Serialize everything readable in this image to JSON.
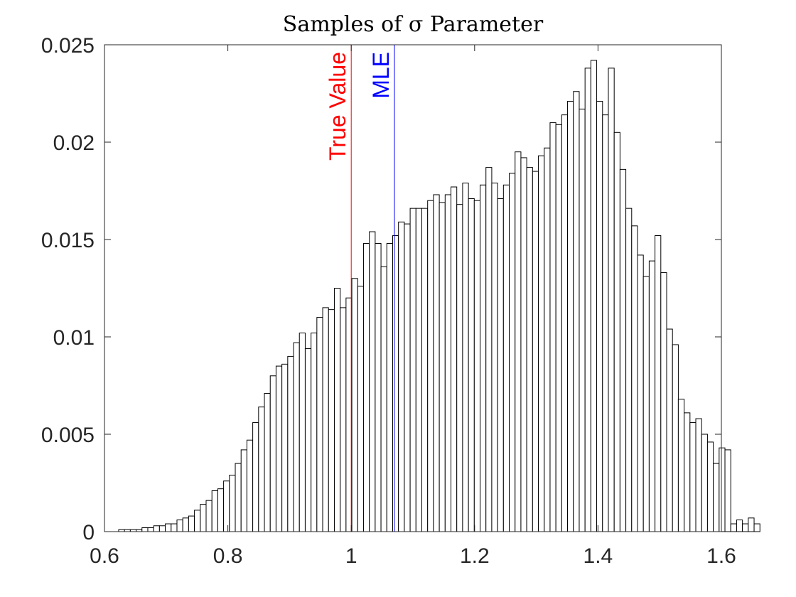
{
  "chart_data": {
    "type": "bar",
    "title": "Samples of σ Parameter",
    "xlabel": "",
    "ylabel": "",
    "xlim": [
      0.6,
      1.6
    ],
    "ylim": [
      0,
      0.025
    ],
    "xticks": [
      "0.6",
      "0.8",
      "1",
      "1.2",
      "1.4",
      "1.6"
    ],
    "yticks": [
      "0",
      "0.005",
      "0.01",
      "0.015",
      "0.02",
      "0.025"
    ],
    "grid": false,
    "bins": {
      "start": 0.623,
      "width": 0.00945,
      "values": [
        0.0001,
        0.0001,
        0.0001,
        0.0001,
        0.0002,
        0.0002,
        0.0003,
        0.0003,
        0.0004,
        0.0004,
        0.0006,
        0.0007,
        0.0008,
        0.0011,
        0.0014,
        0.0016,
        0.0021,
        0.0022,
        0.0026,
        0.0029,
        0.0035,
        0.0042,
        0.0047,
        0.0056,
        0.0064,
        0.0071,
        0.008,
        0.0085,
        0.0086,
        0.009,
        0.0097,
        0.0102,
        0.0094,
        0.0102,
        0.011,
        0.0115,
        0.0114,
        0.0125,
        0.0115,
        0.012,
        0.013,
        0.0126,
        0.0148,
        0.0154,
        0.0148,
        0.0136,
        0.0148,
        0.0152,
        0.0159,
        0.0158,
        0.0166,
        0.0166,
        0.0166,
        0.017,
        0.0173,
        0.0169,
        0.0173,
        0.0177,
        0.0168,
        0.0179,
        0.0171,
        0.017,
        0.0178,
        0.0187,
        0.0179,
        0.0171,
        0.0178,
        0.0184,
        0.0195,
        0.0192,
        0.0187,
        0.0185,
        0.0193,
        0.0197,
        0.021,
        0.0209,
        0.0214,
        0.0221,
        0.0226,
        0.0217,
        0.0238,
        0.0242,
        0.0221,
        0.0214,
        0.0238,
        0.0205,
        0.0186,
        0.0166,
        0.0157,
        0.0142,
        0.0131,
        0.0139,
        0.0152,
        0.0133,
        0.0104,
        0.0096,
        0.0068,
        0.0061,
        0.0056,
        0.0058,
        0.005,
        0.0046,
        0.0035,
        0.0043,
        0.0042,
        0.0004,
        0.0006,
        0.0004,
        0.0007,
        0.0004
      ]
    },
    "annotations": [
      {
        "label": "True Value",
        "x": 1.0,
        "color": "#ff0000"
      },
      {
        "label": "MLE",
        "x": 1.07,
        "color": "#0000ff"
      }
    ]
  }
}
